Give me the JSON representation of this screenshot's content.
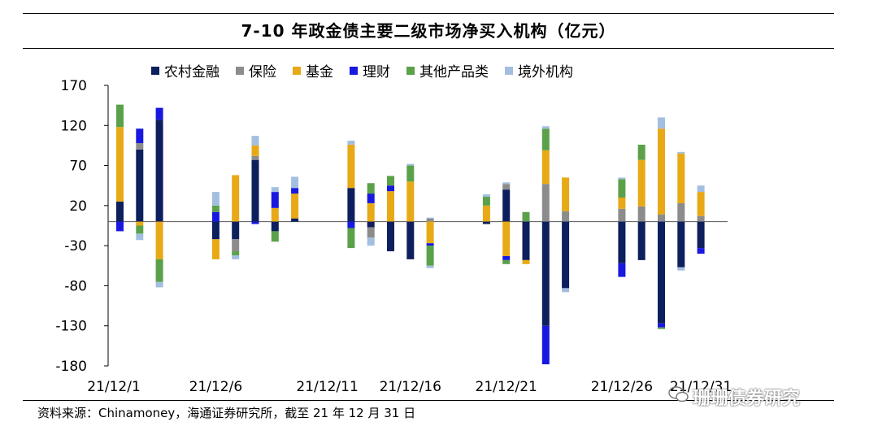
{
  "chart_data": {
    "type": "bar",
    "stacked": true,
    "title": "7-10 年政金债主要二级市场净买入机构（亿元）",
    "ylabel": "",
    "xlabel": "",
    "ylim": [
      -180,
      170
    ],
    "yticks": [
      170,
      120,
      70,
      20,
      -30,
      -80,
      -130,
      -180
    ],
    "x_tick_labels": [
      "21/12/1",
      "21/12/6",
      "21/12/11",
      "21/12/16",
      "21/12/21",
      "21/12/26",
      "21/12/31"
    ],
    "legend_position": "top",
    "series": [
      {
        "name": "农村金融",
        "color": "#0d1f5c"
      },
      {
        "name": "保险",
        "color": "#8c8c8c"
      },
      {
        "name": "基金",
        "color": "#e8a916"
      },
      {
        "name": "理财",
        "color": "#1818e0"
      },
      {
        "name": "其他产品类",
        "color": "#5aa14a"
      },
      {
        "name": "境外机构",
        "color": "#a3bfe0"
      }
    ],
    "bars": [
      {
        "date": "21/12/1",
        "pos": [
          [
            "农村金融",
            25
          ],
          [
            "基金",
            93
          ],
          [
            "其他产品类",
            28
          ]
        ],
        "neg": [
          [
            "理财",
            -12
          ]
        ]
      },
      {
        "date": "21/12/2",
        "pos": [
          [
            "农村金融",
            90
          ],
          [
            "保险",
            8
          ],
          [
            "理财",
            18
          ]
        ],
        "neg": [
          [
            "基金",
            -5
          ],
          [
            "其他产品类",
            -10
          ],
          [
            "境外机构",
            -8
          ]
        ]
      },
      {
        "date": "21/12/3",
        "pos": [
          [
            "农村金融",
            127
          ],
          [
            "理财",
            15
          ]
        ],
        "neg": [
          [
            "基金",
            -47
          ],
          [
            "其他产品类",
            -28
          ],
          [
            "境外机构",
            -7
          ]
        ]
      },
      {
        "date": "21/12/6",
        "pos": [
          [
            "理财",
            12
          ],
          [
            "其他产品类",
            8
          ],
          [
            "境外机构",
            17
          ]
        ],
        "neg": [
          [
            "农村金融",
            -22
          ],
          [
            "基金",
            -25
          ]
        ]
      },
      {
        "date": "21/12/7",
        "pos": [
          [
            "基金",
            58
          ]
        ],
        "neg": [
          [
            "农村金融",
            -22
          ],
          [
            "保险",
            -15
          ],
          [
            "其他产品类",
            -5
          ],
          [
            "境外机构",
            -5
          ]
        ]
      },
      {
        "date": "21/12/8",
        "pos": [
          [
            "农村金融",
            77
          ],
          [
            "保险",
            5
          ],
          [
            "基金",
            13
          ],
          [
            "境外机构",
            12
          ]
        ],
        "neg": [
          [
            "理财",
            -3
          ]
        ]
      },
      {
        "date": "21/12/9",
        "pos": [
          [
            "基金",
            17
          ],
          [
            "理财",
            20
          ],
          [
            "境外机构",
            6
          ]
        ],
        "neg": [
          [
            "农村金融",
            -12
          ],
          [
            "其他产品类",
            -13
          ]
        ]
      },
      {
        "date": "21/12/10",
        "pos": [
          [
            "农村金融",
            4
          ],
          [
            "基金",
            31
          ],
          [
            "理财",
            7
          ],
          [
            "境外机构",
            14
          ]
        ],
        "neg": []
      },
      {
        "date": "21/12/13",
        "pos": [
          [
            "农村金融",
            42
          ],
          [
            "基金",
            54
          ],
          [
            "境外机构",
            5
          ]
        ],
        "neg": [
          [
            "理财",
            -8
          ],
          [
            "其他产品类",
            -25
          ]
        ]
      },
      {
        "date": "21/12/14",
        "pos": [
          [
            "基金",
            23
          ],
          [
            "理财",
            12
          ],
          [
            "其他产品类",
            13
          ]
        ],
        "neg": [
          [
            "农村金融",
            -7
          ],
          [
            "保险",
            -13
          ],
          [
            "境外机构",
            -10
          ]
        ]
      },
      {
        "date": "21/12/15",
        "pos": [
          [
            "基金",
            38
          ],
          [
            "理财",
            7
          ],
          [
            "其他产品类",
            12
          ]
        ],
        "neg": [
          [
            "农村金融",
            -37
          ]
        ]
      },
      {
        "date": "21/12/16",
        "pos": [
          [
            "基金",
            50
          ],
          [
            "其他产品类",
            20
          ],
          [
            "境外机构",
            2
          ]
        ],
        "neg": [
          [
            "农村金融",
            -47
          ]
        ]
      },
      {
        "date": "21/12/17",
        "pos": [
          [
            "保险",
            4
          ],
          [
            "境外机构",
            1
          ]
        ],
        "neg": [
          [
            "基金",
            -27
          ],
          [
            "理财",
            -3
          ],
          [
            "其他产品类",
            -25
          ],
          [
            "境外机构",
            -3
          ]
        ]
      },
      {
        "date": "21/12/20",
        "pos": [
          [
            "基金",
            20
          ],
          [
            "其他产品类",
            11
          ],
          [
            "境外机构",
            3
          ]
        ],
        "neg": [
          [
            "农村金融",
            -3
          ]
        ]
      },
      {
        "date": "21/12/21",
        "pos": [
          [
            "农村金融",
            40
          ],
          [
            "保险",
            7
          ],
          [
            "境外机构",
            2
          ]
        ],
        "neg": [
          [
            "基金",
            -43
          ],
          [
            "理财",
            -5
          ],
          [
            "其他产品类",
            -5
          ]
        ]
      },
      {
        "date": "21/12/22",
        "pos": [
          [
            "其他产品类",
            12
          ]
        ],
        "neg": [
          [
            "农村金融",
            -48
          ],
          [
            "基金",
            -5
          ]
        ]
      },
      {
        "date": "21/12/23",
        "pos": [
          [
            "保险",
            47
          ],
          [
            "基金",
            42
          ],
          [
            "其他产品类",
            27
          ],
          [
            "境外机构",
            3
          ]
        ],
        "neg": [
          [
            "农村金融",
            -130
          ],
          [
            "理财",
            -48
          ]
        ]
      },
      {
        "date": "21/12/24",
        "pos": [
          [
            "保险",
            13
          ],
          [
            "基金",
            42
          ]
        ],
        "neg": [
          [
            "农村金融",
            -83
          ],
          [
            "境外机构",
            -5
          ]
        ]
      },
      {
        "date": "21/12/27",
        "pos": [
          [
            "保险",
            16
          ],
          [
            "基金",
            14
          ],
          [
            "其他产品类",
            23
          ],
          [
            "境外机构",
            2
          ]
        ],
        "neg": [
          [
            "农村金融",
            -52
          ],
          [
            "理财",
            -17
          ]
        ]
      },
      {
        "date": "21/12/28",
        "pos": [
          [
            "保险",
            19
          ],
          [
            "基金",
            58
          ],
          [
            "其他产品类",
            19
          ]
        ],
        "neg": [
          [
            "农村金融",
            -48
          ]
        ]
      },
      {
        "date": "21/12/29",
        "pos": [
          [
            "保险",
            9
          ],
          [
            "基金",
            107
          ],
          [
            "境外机构",
            14
          ]
        ],
        "neg": [
          [
            "农村金融",
            -127
          ],
          [
            "理财",
            -5
          ],
          [
            "其他产品类",
            -2
          ]
        ]
      },
      {
        "date": "21/12/30",
        "pos": [
          [
            "保险",
            23
          ],
          [
            "基金",
            62
          ],
          [
            "境外机构",
            2
          ]
        ],
        "neg": [
          [
            "农村金融",
            -57
          ],
          [
            "境外机构",
            -4
          ]
        ]
      },
      {
        "date": "21/12/31",
        "pos": [
          [
            "保险",
            7
          ],
          [
            "基金",
            30
          ],
          [
            "境外机构",
            8
          ]
        ],
        "neg": [
          [
            "农村金融",
            -33
          ],
          [
            "理财",
            -7
          ]
        ]
      }
    ]
  },
  "source_note": "资料来源：Chinamoney，海通证券研究所，截至 21 年 12 月 31 日",
  "watermark": "珊珊债券研究"
}
